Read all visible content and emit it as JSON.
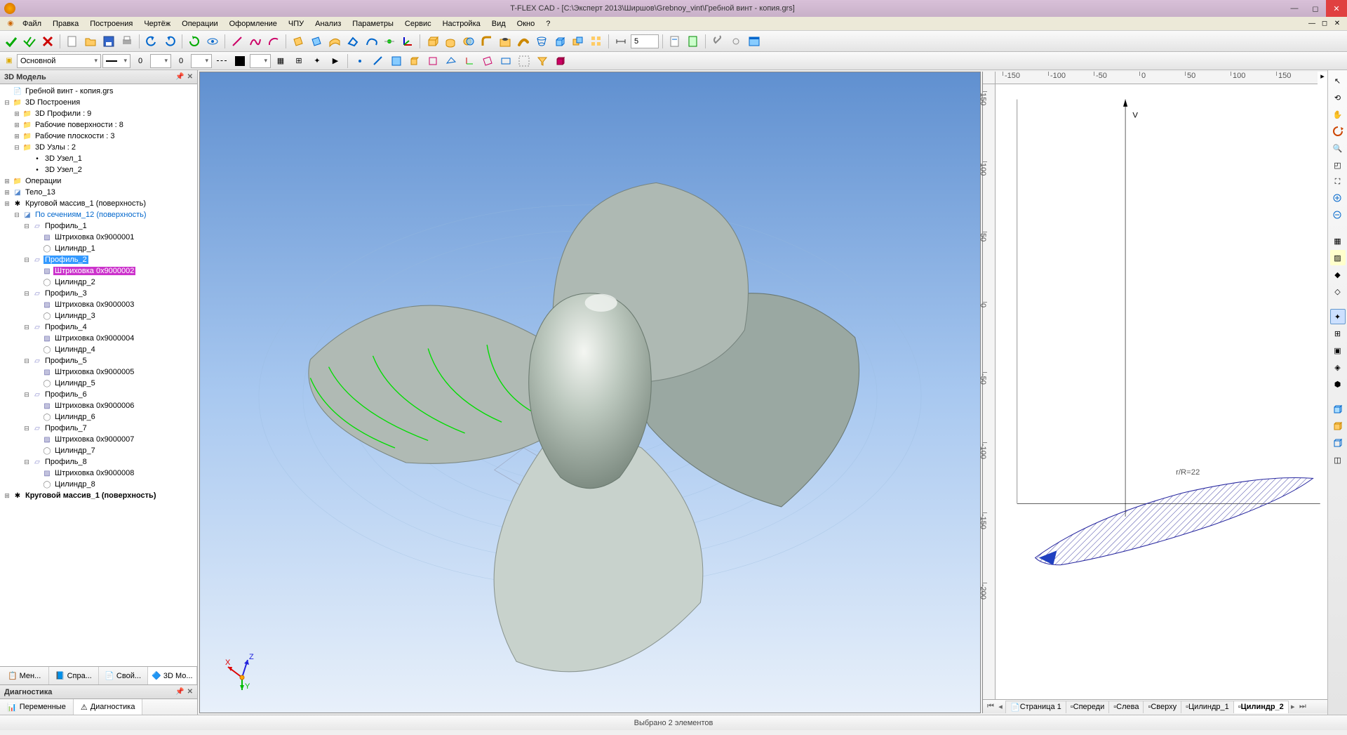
{
  "app": {
    "title": "T-FLEX CAD - [C:\\Эксперт 2013\\Ширшов\\Grebnoy_vint\\Гребной винт - копия.grs]"
  },
  "menu": [
    "Файл",
    "Правка",
    "Построения",
    "Чертёж",
    "Операции",
    "Оформление",
    "ЧПУ",
    "Анализ",
    "Параметры",
    "Сервис",
    "Настройка",
    "Вид",
    "Окно",
    "?"
  ],
  "toolbar2": {
    "layer_label": "Основной"
  },
  "toolbar1": {
    "spin_value": "5"
  },
  "left": {
    "title": "3D Модель",
    "root": "Гребной винт - копия.grs",
    "n1": "3D Построения",
    "n1a": "3D Профили : 9",
    "n1b": "Рабочие поверхности : 8",
    "n1c": "Рабочие плоскости : 3",
    "n1d": "3D Узлы : 2",
    "n1d1": "3D Узел_1",
    "n1d2": "3D Узел_2",
    "n2": "Операции",
    "n3": "Тело_13",
    "n4": "Круговой массив_1 (поверхность)",
    "n5": "По сечениям_12 (поверхность)",
    "profiles": [
      {
        "p": "Профиль_1",
        "h": "Штриховка 0x9000001",
        "c": "Цилиндр_1"
      },
      {
        "p": "Профиль_2",
        "h": "Штриховка 0x9000002",
        "c": "Цилиндр_2"
      },
      {
        "p": "Профиль_3",
        "h": "Штриховка 0x9000003",
        "c": "Цилиндр_3"
      },
      {
        "p": "Профиль_4",
        "h": "Штриховка 0x9000004",
        "c": "Цилиндр_4"
      },
      {
        "p": "Профиль_5",
        "h": "Штриховка 0x9000005",
        "c": "Цилиндр_5"
      },
      {
        "p": "Профиль_6",
        "h": "Штриховка 0x9000006",
        "c": "Цилиндр_6"
      },
      {
        "p": "Профиль_7",
        "h": "Штриховка 0x9000007",
        "c": "Цилиндр_7"
      },
      {
        "p": "Профиль_8",
        "h": "Штриховка 0x9000008",
        "c": "Цилиндр_8"
      }
    ],
    "n6": "Круговой массив_1 (поверхность)",
    "tabs": [
      "Мен...",
      "Спра...",
      "Свой...",
      "3D Мо..."
    ],
    "diag_title": "Диагностика",
    "diag_tabs": [
      "Переменные",
      "Диагностика"
    ]
  },
  "view2d": {
    "ruler_h": [
      "-150",
      "-100",
      "-50",
      "0",
      "50",
      "100",
      "150"
    ],
    "ruler_v": [
      "150",
      "100",
      "50",
      "0",
      "-50",
      "-100",
      "-150",
      "-200"
    ],
    "annotation": "r/R=22",
    "v_label": "V",
    "tabs": [
      "Страница 1",
      "Спереди",
      "Слева",
      "Сверху",
      "Цилиндр_1",
      "Цилиндр_2"
    ]
  },
  "status": "Выбрано 2 элементов",
  "colors": {
    "sel1": "#cc33cc",
    "sel2": "#3399ff",
    "blade": "#a8b8b0",
    "hub": "#c8d0c8",
    "wire": "#00dd00",
    "hatch": "#4040a0"
  },
  "axis": {
    "x": "X",
    "y": "Y",
    "z": "Z"
  }
}
